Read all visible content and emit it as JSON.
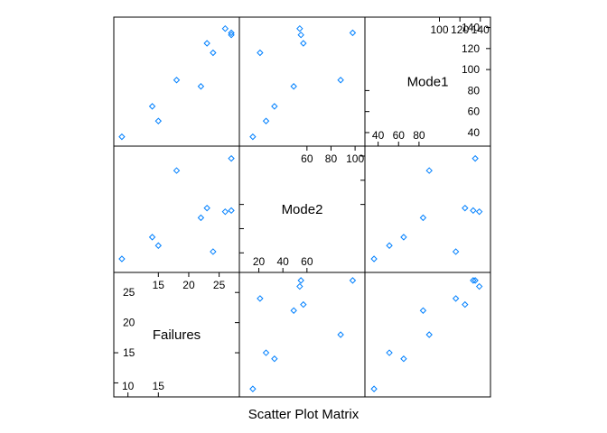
{
  "chart_data": {
    "type": "scatter",
    "title": "Scatter Plot Matrix",
    "point_color": "#0080ff",
    "variables": [
      {
        "name": "Mode1",
        "limits": [
          32,
          145
        ],
        "ticks_low": [
          40,
          60,
          80
        ],
        "ticks_high": [
          100,
          120,
          140
        ],
        "values": [
          51,
          36,
          65,
          90,
          84,
          133,
          135,
          125,
          116,
          139
        ]
      },
      {
        "name": "Mode2",
        "limits": [
          8,
          104
        ],
        "ticks_low": [
          20,
          40,
          60
        ],
        "ticks_high": [
          60,
          80,
          100
        ],
        "values": [
          26,
          15,
          33,
          88,
          49,
          55,
          98,
          57,
          21,
          54
        ]
      },
      {
        "name": "Failures",
        "limits": [
          8.5,
          27.5
        ],
        "ticks_low": [
          10,
          15
        ],
        "ticks_high": [
          15,
          20,
          25
        ],
        "values": [
          15,
          9,
          14,
          18,
          22,
          27,
          27,
          23,
          24,
          26
        ]
      }
    ]
  }
}
